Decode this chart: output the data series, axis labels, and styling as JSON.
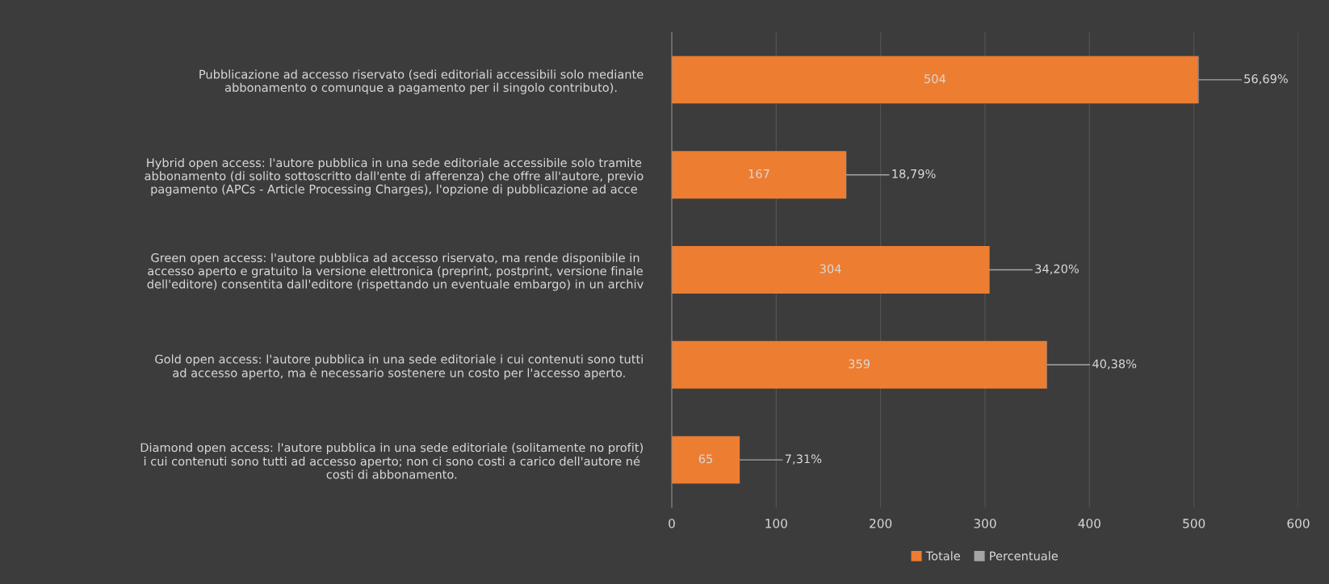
{
  "chart_data": {
    "type": "bar",
    "orientation": "horizontal",
    "stacked": true,
    "categories": [
      "Pubblicazione ad accesso riservato (sedi editoriali accessibili solo mediante\nabbonamento o comunque a pagamento per il singolo contributo).",
      "Hybrid open access: l'autore pubblica in una sede editoriale accessibile solo tramite\nabbonamento (di solito sottoscritto dall'ente di afferenza) che offre all'autore, previo\npagamento (APCs - Article Processing Charges), l'opzione di pubblicazione ad acce",
      "Green open access: l'autore pubblica ad accesso riservato, ma rende disponibile in\naccesso aperto e gratuito la versione elettronica (preprint, postprint, versione finale\ndell'editore) consentita dall'editore (rispettando un eventuale embargo) in un archiv",
      "Gold open access: l'autore pubblica in una sede editoriale i cui contenuti sono tutti\nad accesso aperto, ma è necessario sostenere un costo per l'accesso aperto.",
      "Diamond open access: l'autore pubblica in una sede editoriale (solitamente no profit)\ni cui contenuti sono tutti ad accesso aperto; non ci sono costi a carico dell'autore né\ncosti di abbonamento."
    ],
    "series": [
      {
        "name": "Totale",
        "color": "#ed7d31",
        "values": [
          504,
          167,
          304,
          359,
          65
        ],
        "value_labels": [
          "504",
          "167",
          "304",
          "359",
          "65"
        ]
      },
      {
        "name": "Percentuale",
        "color": "#a5a5a5",
        "values": [
          0.5669,
          0.1879,
          0.342,
          0.4038,
          0.0731
        ],
        "value_labels": [
          "56,69%",
          "18,79%",
          "34,20%",
          "40,38%",
          "7,31%"
        ]
      }
    ],
    "xlim": [
      0,
      600
    ],
    "xticks": [
      0,
      100,
      200,
      300,
      400,
      500,
      600
    ],
    "grid": "x",
    "legend": "bottom"
  }
}
